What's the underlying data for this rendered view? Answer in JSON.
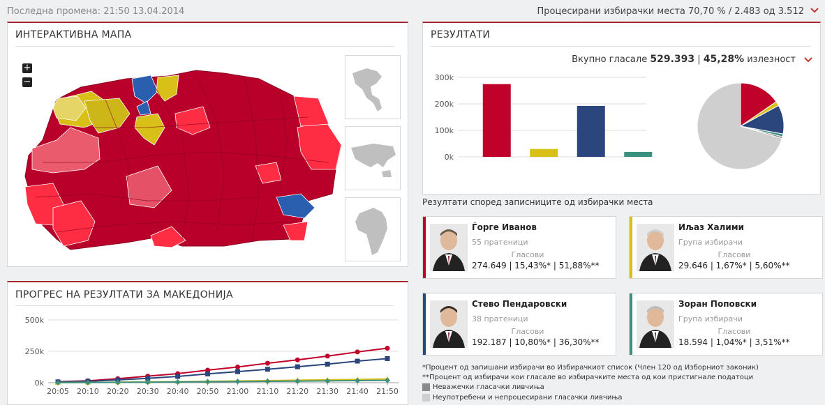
{
  "header": {
    "last_update": "Последна промена: 21:50 13.04.2014",
    "processed": "Процесирани избирачки места 70,70 % / 2.483 од 3.512"
  },
  "map_panel": {
    "title": "ИНТЕРАКТИВНА МАПА",
    "zoom_in": "+",
    "zoom_out": "−",
    "region_icons": [
      "americas-map-icon",
      "asia-map-icon",
      "africa-map-icon"
    ]
  },
  "progress_panel": {
    "title": "ПРОГРЕС НА РЕЗУЛТАТИ ЗА МАКЕДОНИЈА"
  },
  "results_panel": {
    "title": "РЕЗУЛТАТИ",
    "total_label": "Вкупно гласале",
    "total_value": "529.393",
    "separator": "|",
    "turnout_value": "45,28%",
    "turnout_label": "излезност"
  },
  "section_label": "Резултати според записниците од избирачки места",
  "candidates": [
    {
      "name": "Ѓорге Иванов",
      "party": "55 пратеници",
      "votes_label": "Гласови",
      "votes": "274.649",
      "pct_registered": "15,43%*",
      "pct_votes": "51,88%**",
      "color": "#c0022a"
    },
    {
      "name": "Иљаз Халими",
      "party": "Група избирачи",
      "votes_label": "Гласови",
      "votes": "29.646",
      "pct_registered": "1,67%*",
      "pct_votes": "5,60%**",
      "color": "#d8c019"
    },
    {
      "name": "Стево Пендаровски",
      "party": "38 пратеници",
      "votes_label": "Гласови",
      "votes": "192.187",
      "pct_registered": "10,80%*",
      "pct_votes": "36,30%**",
      "color": "#2a467c"
    },
    {
      "name": "Зоран Поповски",
      "party": "Група избирачи",
      "votes_label": "Гласови",
      "votes": "18.594",
      "pct_registered": "1,04%*",
      "pct_votes": "3,51%**",
      "color": "#3a8f7e"
    }
  ],
  "notes": {
    "note1": "*Процент од запишани избирачи во Избирачкиот список (Член 120 од Изборниот законик)",
    "note2": "**Процент од избирачи кои гласале во избирачките места од кои пристигнале податоци",
    "legend_invalid": "Неважечки гласачки ливчиња",
    "legend_unused": "Неупотребени и непроцесирани гласачки ливчиња",
    "legend_invalid_color": "#8a8a8a",
    "legend_unused_color": "#cfcfcf"
  },
  "chart_data": [
    {
      "type": "bar",
      "categories": [
        "Ѓорге Иванов",
        "Иљаз Халими",
        "Стево Пендаровски",
        "Зоран Поповски"
      ],
      "values": [
        274649,
        29646,
        192187,
        18594
      ],
      "colors": [
        "#c0022a",
        "#d8c019",
        "#2a467c",
        "#3a8f7e"
      ],
      "yticks": [
        "0k",
        "100k",
        "200k",
        "300k"
      ],
      "ylim": [
        0,
        300000
      ],
      "grid": true
    },
    {
      "type": "pie",
      "labels": [
        "Ѓорге Иванов",
        "Иљаз Халими",
        "Стево Пендаровски",
        "Зоран Поповски",
        "Неважечки гласачки ливчиња",
        "Неупотребени и непроцесирани гласачки ливчиња"
      ],
      "values": [
        15.43,
        1.67,
        10.8,
        1.04,
        0.7,
        70.36
      ],
      "colors": [
        "#c0022a",
        "#d8c019",
        "#2a467c",
        "#3a8f7e",
        "#8a8a8a",
        "#cfcfcf"
      ]
    },
    {
      "type": "line",
      "x": [
        "20:05",
        "20:10",
        "20:20",
        "20:30",
        "20:40",
        "20:50",
        "21:00",
        "21:10",
        "21:20",
        "21:30",
        "21:40",
        "21:50"
      ],
      "yticks": [
        "0k",
        "250k",
        "500k"
      ],
      "ylim": [
        0,
        500000
      ],
      "grid": true,
      "series": [
        {
          "color": "#c0022a",
          "marker": "circle",
          "values": [
            8000,
            15000,
            32000,
            52000,
            72000,
            100000,
            125000,
            155000,
            182000,
            212000,
            245000,
            275000
          ]
        },
        {
          "color": "#2a467c",
          "marker": "square",
          "values": [
            6000,
            11000,
            22000,
            35000,
            50000,
            70000,
            88000,
            107000,
            127000,
            148000,
            172000,
            192000
          ]
        },
        {
          "color": "#d8c019",
          "marker": "triangle",
          "values": [
            1000,
            2000,
            4000,
            6000,
            8000,
            11000,
            14000,
            17000,
            20000,
            23000,
            26000,
            29600
          ]
        },
        {
          "color": "#3a8f7e",
          "marker": "diamond",
          "values": [
            700,
            1400,
            2800,
            4200,
            5700,
            7500,
            9200,
            11000,
            12800,
            14700,
            16600,
            18600
          ]
        }
      ]
    }
  ]
}
